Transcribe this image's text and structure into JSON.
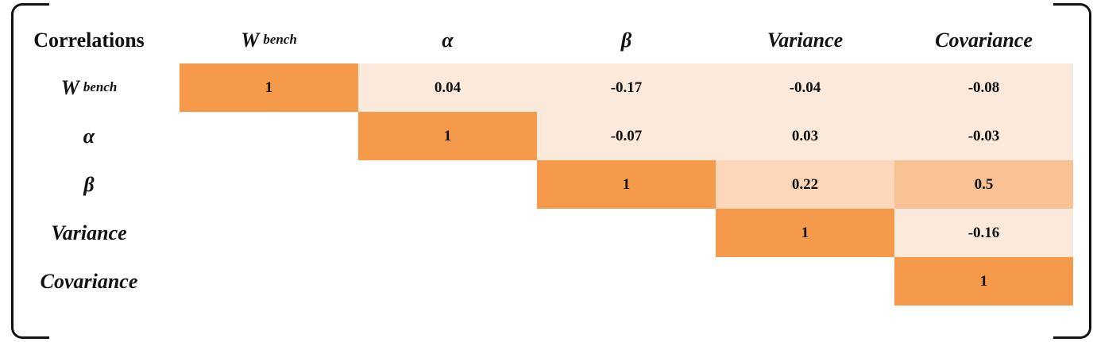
{
  "chart_data": {
    "type": "heatmap",
    "title": "",
    "corner_label": "Correlations",
    "variables": [
      {
        "main": "W",
        "sub": "bench"
      },
      {
        "main": "α",
        "sub": ""
      },
      {
        "main": "β",
        "sub": ""
      },
      {
        "main": "Variance",
        "sub": ""
      },
      {
        "main": "Covariance",
        "sub": ""
      }
    ],
    "matrix": [
      [
        "1",
        "0.04",
        "-0.17",
        "-0.04",
        "-0.08"
      ],
      [
        null,
        "1",
        "-0.07",
        "0.03",
        "-0.03"
      ],
      [
        null,
        null,
        "1",
        "0.22",
        "0.5"
      ],
      [
        null,
        null,
        null,
        "1",
        "-0.16"
      ],
      [
        null,
        null,
        null,
        null,
        "1"
      ]
    ],
    "upper_triangle_only": true,
    "grid": false,
    "legend": "none",
    "colors": {
      "diagonal": "#F5994B",
      "low": "#FBE9DC",
      "mid": "#FBD6B9",
      "high": "#F9C295",
      "text": "#111111"
    }
  }
}
